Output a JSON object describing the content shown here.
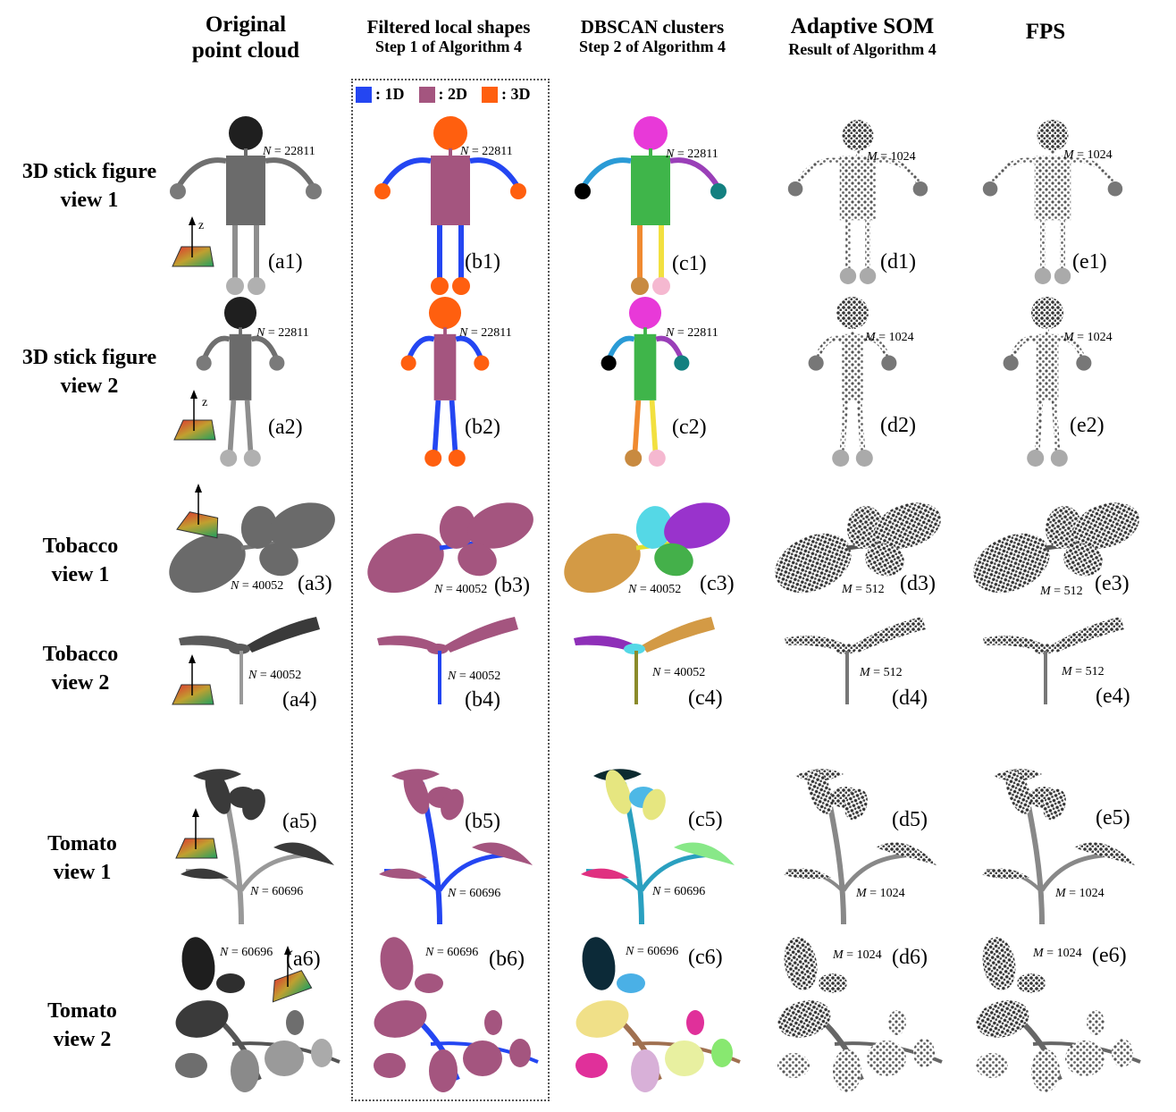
{
  "columns": [
    {
      "title": "Original",
      "title2": "point cloud",
      "subtitle": ""
    },
    {
      "title": "Filtered local shapes",
      "title2": "",
      "subtitle": "Step 1 of Algorithm 4"
    },
    {
      "title": "DBSCAN clusters",
      "title2": "",
      "subtitle": "Step 2 of Algorithm 4"
    },
    {
      "title": "Adaptive SOM",
      "title2": "",
      "subtitle": "Result of Algorithm 4"
    },
    {
      "title": "FPS",
      "title2": "",
      "subtitle": ""
    }
  ],
  "legend": [
    {
      "label": ": 1D",
      "color": "#2446f2"
    },
    {
      "label": ": 2D",
      "color": "#a4557f"
    },
    {
      "label": ": 3D",
      "color": "#ff5f0f"
    }
  ],
  "rows": [
    {
      "line1": "3D stick figure",
      "line2": "view 1"
    },
    {
      "line1": "3D stick figure",
      "line2": "view 2"
    },
    {
      "line1": "Tobacco",
      "line2": "view 1"
    },
    {
      "line1": "Tobacco",
      "line2": "view 2"
    },
    {
      "line1": "Tomato",
      "line2": "view 1"
    },
    {
      "line1": "Tomato",
      "line2": "view 2"
    }
  ],
  "tags": {
    "a": [
      "(a1)",
      "(a2)",
      "(a3)",
      "(a4)",
      "(a5)",
      "(a6)"
    ],
    "b": [
      "(b1)",
      "(b2)",
      "(b3)",
      "(b4)",
      "(b5)",
      "(b6)"
    ],
    "c": [
      "(c1)",
      "(c2)",
      "(c3)",
      "(c4)",
      "(c5)",
      "(c6)"
    ],
    "d": [
      "(d1)",
      "(d2)",
      "(d3)",
      "(d4)",
      "(d5)",
      "(d6)"
    ],
    "e": [
      "(e1)",
      "(e2)",
      "(e3)",
      "(e4)",
      "(e5)",
      "(e6)"
    ]
  },
  "counts": {
    "n_var": "N",
    "m_var": "M",
    "n_values": [
      " = 22811",
      " = 22811",
      " = 40052",
      " = 40052",
      " = 60696",
      " = 60696"
    ],
    "m_values": [
      " = 1024",
      " = 1024",
      " = 512",
      " = 512",
      " = 1024",
      " = 1024"
    ]
  },
  "axis_label": "z",
  "colors": {
    "original": "#5a5a5a",
    "twoD": "#a4557f",
    "threeD": "#ff5f0f",
    "oneD": "#2446f2",
    "cluster_head": "#e839d8",
    "cluster_body": "#3fb54a"
  }
}
